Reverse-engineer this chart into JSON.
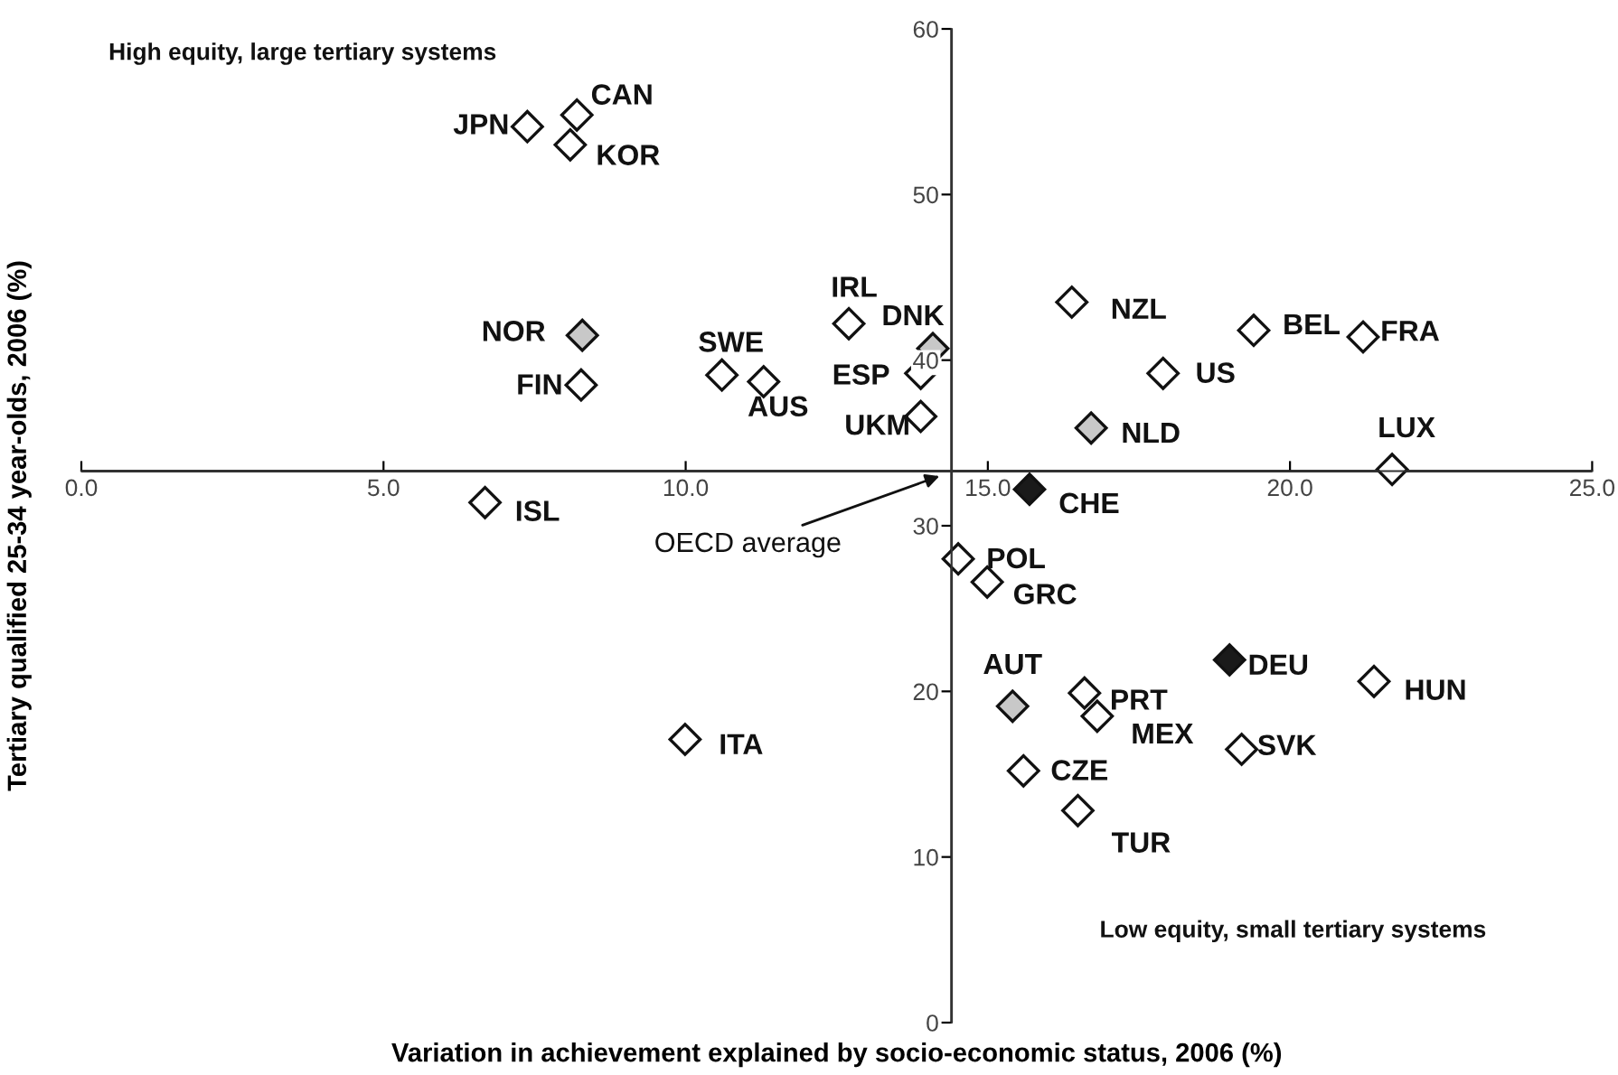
{
  "chart_data": {
    "type": "scatter",
    "xlabel": "Variation in achievement explained by socio-economic status, 2006 (%)",
    "ylabel": "Tertiary qualified 25-34 year-olds, 2006 (%)",
    "xlim": [
      0,
      25
    ],
    "ylim": [
      0,
      60
    ],
    "xticks": [
      {
        "value": 0,
        "label": "0.0"
      },
      {
        "value": 5,
        "label": "5.0"
      },
      {
        "value": 10,
        "label": "10.0"
      },
      {
        "value": 15,
        "label": "15.0"
      },
      {
        "value": 20,
        "label": "20.0"
      },
      {
        "value": 25,
        "label": "25.0"
      }
    ],
    "yticks": [
      0,
      10,
      20,
      30,
      40,
      50,
      60
    ],
    "grid": false,
    "legend": false,
    "marker": "diamond",
    "ref_lines": [
      {
        "axis": "x",
        "value": 14.4,
        "color": "#333333"
      },
      {
        "axis": "y",
        "value": 33.3,
        "color": "#333333"
      }
    ],
    "series": [
      {
        "x": [
          7.38,
          8.2,
          8.09,
          8.29,
          8.27,
          10.6,
          11.29,
          6.68,
          9.99,
          12.7,
          14.09,
          13.89,
          13.89,
          16.39,
          16.71,
          17.9,
          19.4,
          21.21,
          21.69,
          15.69,
          14.51,
          14.99,
          15.41,
          16.6,
          16.81,
          15.59,
          16.49,
          19.0,
          19.2,
          21.39
        ],
        "values": [
          54.1,
          54.8,
          53.0,
          41.5,
          38.5,
          39.1,
          38.7,
          31.4,
          17.1,
          42.2,
          40.7,
          39.2,
          36.6,
          43.5,
          35.9,
          39.2,
          41.8,
          41.4,
          33.4,
          32.2,
          28.0,
          26.6,
          19.1,
          19.9,
          18.5,
          15.2,
          12.8,
          21.9,
          16.5,
          20.6
        ],
        "colors": [
          "#ffffff",
          "#ffffff",
          "#ffffff",
          "#c8c8c8",
          "#ffffff",
          "#ffffff",
          "#ffffff",
          "#ffffff",
          "#ffffff",
          "#ffffff",
          "#c8c8c8",
          "#ffffff",
          "#ffffff",
          "#ffffff",
          "#c8c8c8",
          "#ffffff",
          "#ffffff",
          "#ffffff",
          "#ffffff",
          "#1a1a1a",
          "#ffffff",
          "#ffffff",
          "#c8c8c8",
          "#ffffff",
          "#ffffff",
          "#ffffff",
          "#ffffff",
          "#1a1a1a",
          "#ffffff",
          "#ffffff"
        ]
      }
    ],
    "annotations": [
      "High equity, large tertiary systems",
      "Low equity, small tertiary systems",
      {
        "text": "OECD average",
        "x": 14.2,
        "y": 33.0
      },
      {
        "text": "JPN",
        "x": 7.38,
        "y": 54.1
      },
      {
        "text": "CAN",
        "x": 8.2,
        "y": 54.8
      },
      {
        "text": "KOR",
        "x": 8.09,
        "y": 53.0
      },
      {
        "text": "NOR",
        "x": 8.29,
        "y": 41.5
      },
      {
        "text": "FIN",
        "x": 8.27,
        "y": 38.5
      },
      {
        "text": "SWE",
        "x": 10.6,
        "y": 39.1
      },
      {
        "text": "AUS",
        "x": 11.29,
        "y": 38.7
      },
      {
        "text": "ISL",
        "x": 6.68,
        "y": 31.4
      },
      {
        "text": "ITA",
        "x": 9.99,
        "y": 17.1
      },
      {
        "text": "IRL",
        "x": 12.7,
        "y": 42.2
      },
      {
        "text": "DNK",
        "x": 14.09,
        "y": 40.7
      },
      {
        "text": "ESP",
        "x": 13.89,
        "y": 39.2
      },
      {
        "text": "UKM",
        "x": 13.89,
        "y": 36.6
      },
      {
        "text": "NZL",
        "x": 16.39,
        "y": 43.5
      },
      {
        "text": "NLD",
        "x": 16.71,
        "y": 35.9
      },
      {
        "text": "US",
        "x": 17.9,
        "y": 39.2
      },
      {
        "text": "BEL",
        "x": 19.4,
        "y": 41.8
      },
      {
        "text": "FRA",
        "x": 21.21,
        "y": 41.4
      },
      {
        "text": "LUX",
        "x": 21.69,
        "y": 33.4
      },
      {
        "text": "CHE",
        "x": 15.69,
        "y": 32.2
      },
      {
        "text": "POL",
        "x": 14.51,
        "y": 28.0
      },
      {
        "text": "GRC",
        "x": 14.99,
        "y": 26.6
      },
      {
        "text": "AUT",
        "x": 15.41,
        "y": 19.1
      },
      {
        "text": "PRT",
        "x": 16.6,
        "y": 19.9
      },
      {
        "text": "MEX",
        "x": 16.81,
        "y": 18.5
      },
      {
        "text": "CZE",
        "x": 15.59,
        "y": 15.2
      },
      {
        "text": "TUR",
        "x": 16.49,
        "y": 12.8
      },
      {
        "text": "DEU",
        "x": 19.0,
        "y": 21.9
      },
      {
        "text": "SVK",
        "x": 19.2,
        "y": 16.5
      },
      {
        "text": "HUN",
        "x": 21.39,
        "y": 20.6
      }
    ]
  }
}
